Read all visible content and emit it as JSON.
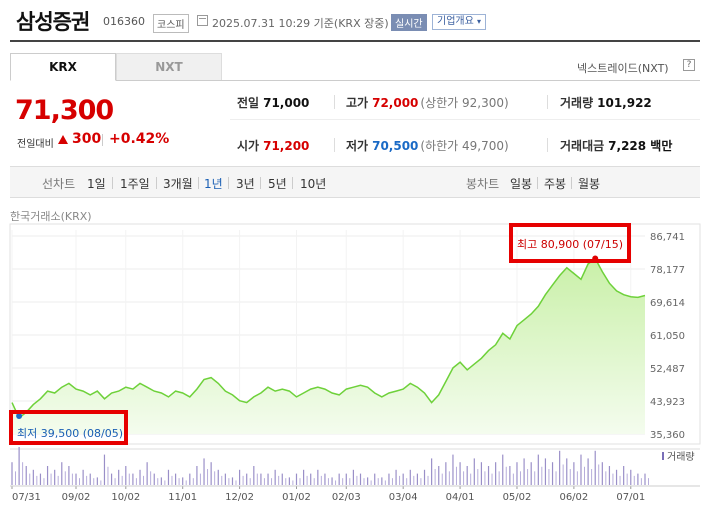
{
  "header": {
    "name": "삼성증권",
    "code": "016360",
    "market": "코스피",
    "datetime": "2025.07.31 10:29 기준(KRX 장중)",
    "realtime": "실시간",
    "corp_info": "기업개요"
  },
  "tabs": [
    {
      "label": "KRX"
    },
    {
      "label": "NXT"
    }
  ],
  "nxt": {
    "label": "넥스트레이드(NXT)",
    "btn": "?"
  },
  "price": {
    "current": "71,300",
    "change_label": "전일대비",
    "change": "300",
    "change_pct": "+0.42%"
  },
  "quotes": {
    "prev_close": {
      "label": "전일",
      "value": "71,000"
    },
    "high": {
      "label": "고가",
      "value": "72,000",
      "sub": "(상한가 92,300)"
    },
    "volume": {
      "label": "거래량",
      "value": "101,922"
    },
    "open": {
      "label": "시가",
      "value": "71,200"
    },
    "low": {
      "label": "저가",
      "value": "70,500",
      "sub": "(하한가 49,700)"
    },
    "amount": {
      "label": "거래대금",
      "value": "7,228 백만"
    }
  },
  "periods": {
    "label": "선차트",
    "items": [
      "1일",
      "1주일",
      "3개월",
      "1년",
      "3년",
      "5년",
      "10년"
    ],
    "active": "1년"
  },
  "candles": {
    "label": "봉차트",
    "items": [
      "일봉",
      "주봉",
      "월봉"
    ]
  },
  "exchange": "한국거래소(KRX)",
  "chart_data": {
    "type": "area",
    "y_ticks": [
      "86,741",
      "78,177",
      "69,614",
      "61,050",
      "52,487",
      "43,923",
      "35,360"
    ],
    "ylim": [
      35360,
      86741
    ],
    "x_ticks": [
      "07/31",
      "09/02",
      "10/02",
      "11/01",
      "12/02",
      "01/02",
      "02/03",
      "03/04",
      "04/01",
      "05/02",
      "06/02",
      "07/01"
    ],
    "max_label": "최고 80,900 (07/15)",
    "min_label": "최저 39,500 (08/05)",
    "volume_label": "거래량",
    "values": [
      43500,
      39500,
      41000,
      43000,
      44500,
      46500,
      46000,
      47500,
      48500,
      47000,
      46500,
      45500,
      46500,
      44500,
      46000,
      46500,
      47500,
      47000,
      48500,
      47500,
      46500,
      46000,
      45000,
      46500,
      46000,
      45000,
      47000,
      49500,
      50000,
      48500,
      46500,
      45500,
      44000,
      43500,
      45000,
      46000,
      47500,
      46500,
      47000,
      46500,
      45000,
      46000,
      47000,
      47500,
      47000,
      46000,
      45500,
      47000,
      47500,
      48000,
      47500,
      46000,
      45000,
      46000,
      46500,
      47000,
      48500,
      47500,
      46000,
      43500,
      45500,
      49000,
      52500,
      54000,
      52000,
      53500,
      55000,
      57000,
      58500,
      61500,
      60000,
      63500,
      65000,
      66500,
      68500,
      71500,
      74000,
      76500,
      78500,
      77000,
      75500,
      79500,
      80900,
      77500,
      74500,
      72500,
      71500,
      71000,
      70800,
      71300
    ],
    "volumes": [
      0.6,
      1.0,
      0.5,
      0.4,
      0.3,
      0.5,
      0.4,
      0.6,
      0.5,
      0.3,
      0.4,
      0.3,
      0.2,
      0.8,
      0.3,
      0.4,
      0.5,
      0.3,
      0.4,
      0.6,
      0.3,
      0.2,
      0.4,
      0.3,
      0.2,
      0.3,
      0.5,
      0.7,
      0.6,
      0.4,
      0.3,
      0.2,
      0.4,
      0.3,
      0.5,
      0.3,
      0.3,
      0.4,
      0.3,
      0.2,
      0.3,
      0.4,
      0.3,
      0.4,
      0.3,
      0.2,
      0.3,
      0.3,
      0.4,
      0.3,
      0.2,
      0.3,
      0.2,
      0.3,
      0.4,
      0.3,
      0.4,
      0.3,
      0.4,
      0.7,
      0.5,
      0.6,
      0.8,
      0.6,
      0.5,
      0.7,
      0.6,
      0.5,
      0.6,
      0.8,
      0.5,
      0.6,
      0.7,
      0.6,
      0.8,
      0.7,
      0.6,
      0.9,
      0.7,
      0.6,
      0.8,
      0.7,
      0.9,
      0.6,
      0.5,
      0.4,
      0.5,
      0.4,
      0.3,
      0.3
    ]
  }
}
